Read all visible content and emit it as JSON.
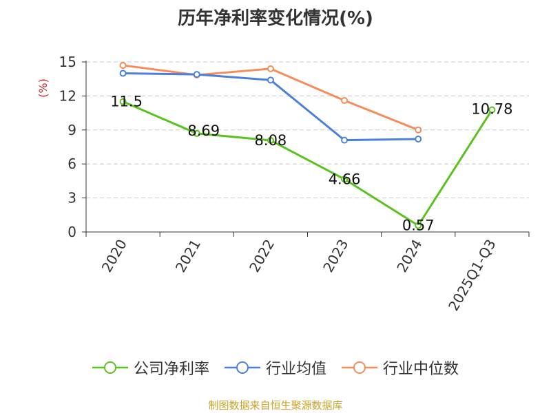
{
  "chart_data": {
    "type": "line",
    "title": "历年净利率变化情况(%)",
    "ylabel": "(%)",
    "categories": [
      "2020",
      "2021",
      "2022",
      "2023",
      "2024",
      "2025Q1-Q3"
    ],
    "ylim": [
      0,
      15
    ],
    "yticks": [
      0,
      3,
      6,
      9,
      12,
      15
    ],
    "grid": "horizontal-dashed",
    "legend_position": "bottom",
    "series": [
      {
        "name": "公司净利率",
        "color": "#5ac21e",
        "values": [
          11.5,
          8.69,
          8.08,
          4.66,
          0.57,
          10.78
        ],
        "labels": [
          "11.5",
          "8.69",
          "8.08",
          "4.66",
          "0.57",
          "10.78"
        ]
      },
      {
        "name": "行业均值",
        "color": "#4a7fdc",
        "values": [
          14.0,
          13.9,
          13.4,
          8.1,
          8.2,
          null
        ]
      },
      {
        "name": "行业中位数",
        "color": "#f58c59",
        "values": [
          14.7,
          13.85,
          14.4,
          11.6,
          9.0,
          null
        ]
      }
    ]
  },
  "footer": {
    "source": "制图数据来自恒生聚源数据库"
  }
}
